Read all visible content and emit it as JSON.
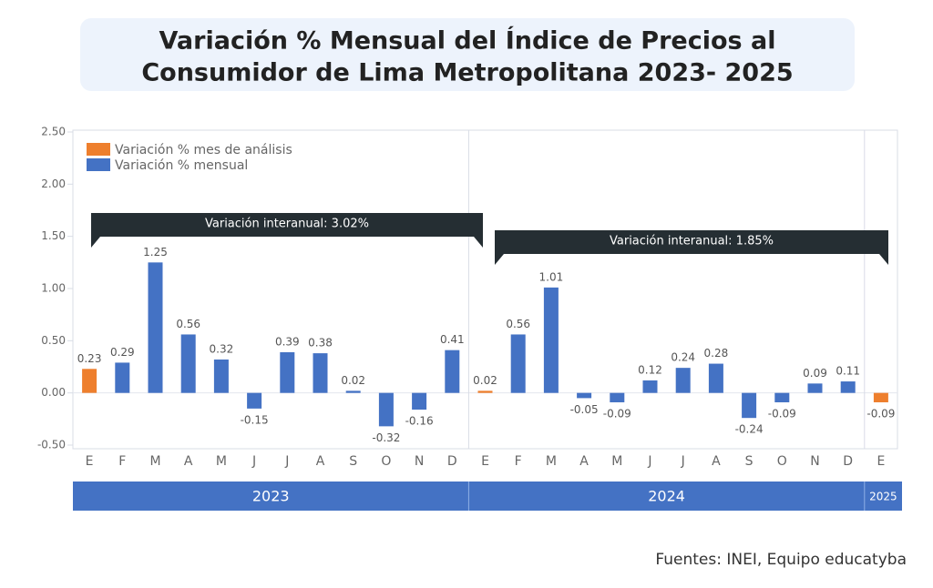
{
  "chart_data": {
    "type": "bar",
    "title": "Variación % Mensual del Índice de Precios al Consumidor de Lima Metropolitana 2023- 2025",
    "categories": [
      "E",
      "F",
      "M",
      "A",
      "M",
      "J",
      "J",
      "A",
      "S",
      "O",
      "N",
      "D",
      "E",
      "F",
      "M",
      "A",
      "M",
      "J",
      "J",
      "A",
      "S",
      "O",
      "N",
      "D",
      "E"
    ],
    "series": [
      {
        "name": "Variación % mes de análisis",
        "color": "#ee7f2d",
        "values": [
          0.23,
          null,
          null,
          null,
          null,
          null,
          null,
          null,
          null,
          null,
          null,
          null,
          0.02,
          null,
          null,
          null,
          null,
          null,
          null,
          null,
          null,
          null,
          null,
          null,
          -0.09
        ]
      },
      {
        "name": "Variación % mensual",
        "color": "#4472c4",
        "values": [
          null,
          0.29,
          1.25,
          0.56,
          0.32,
          -0.15,
          0.39,
          0.38,
          0.02,
          -0.32,
          -0.16,
          0.41,
          null,
          0.56,
          1.01,
          -0.05,
          -0.09,
          0.12,
          0.24,
          0.28,
          -0.24,
          -0.09,
          0.09,
          0.11,
          null
        ]
      }
    ],
    "years": [
      "2023",
      "2024",
      "2025"
    ],
    "annotations": [
      "Variación interanual: 3.02%",
      "Variación interanual: 1.85%"
    ],
    "source": "Fuentes: INEI, Equipo educatyba",
    "ylim": [
      -0.5,
      2.5
    ],
    "yticks": [
      {
        "value": -0.5,
        "label": "-0.50"
      },
      {
        "value": 0,
        "label": "0.00"
      },
      {
        "value": 0.5,
        "label": "0.50"
      },
      {
        "value": 1,
        "label": "1.00"
      },
      {
        "value": 1.5,
        "label": "1.50"
      },
      {
        "value": 2,
        "label": "2.00"
      },
      {
        "value": 2.5,
        "label": "2.50"
      }
    ],
    "legend": "upper left"
  }
}
